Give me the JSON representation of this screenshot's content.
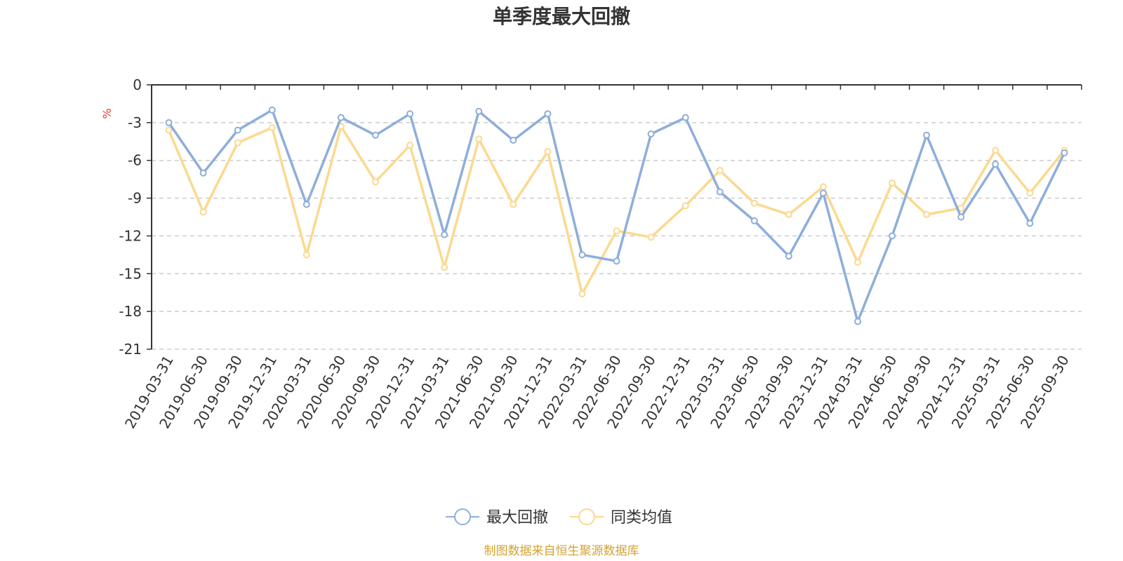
{
  "chart_data": {
    "type": "line",
    "title": "单季度最大回撤",
    "ylabel": "%",
    "ylim": [
      -21,
      0
    ],
    "yticks": [
      0,
      -3,
      -6,
      -9,
      -12,
      -15,
      -18,
      -21
    ],
    "grid": true,
    "legend_position": "bottom-center",
    "categories": [
      "2019-03-31",
      "2019-06-30",
      "2019-09-30",
      "2019-12-31",
      "2020-03-31",
      "2020-06-30",
      "2020-09-30",
      "2020-12-31",
      "2021-03-31",
      "2021-06-30",
      "2021-09-30",
      "2021-12-31",
      "2022-03-31",
      "2022-06-30",
      "2022-09-30",
      "2022-12-31",
      "2023-03-31",
      "2023-06-30",
      "2023-09-30",
      "2023-12-31",
      "2024-03-31",
      "2024-06-30",
      "2024-09-30",
      "2024-12-31",
      "2025-03-31",
      "2025-06-30",
      "2025-09-30"
    ],
    "series": [
      {
        "name": "最大回撤",
        "color": "#8eaedb",
        "values": [
          -3.0,
          -7.0,
          -3.6,
          -2.0,
          -9.5,
          -2.6,
          -4.0,
          -2.3,
          -11.9,
          -2.1,
          -4.4,
          -2.3,
          -13.5,
          -14.0,
          -3.9,
          -2.6,
          -8.5,
          -10.8,
          -13.6,
          -8.6,
          -18.8,
          -12.0,
          -4.0,
          -10.5,
          -6.3,
          -11.0,
          -5.4
        ]
      },
      {
        "name": "同类均值",
        "color": "#fbd98f",
        "values": [
          -3.6,
          -10.1,
          -4.6,
          -3.4,
          -13.5,
          -3.3,
          -7.7,
          -4.8,
          -14.5,
          -4.3,
          -9.5,
          -5.3,
          -16.6,
          -11.6,
          -12.1,
          -9.6,
          -6.8,
          -9.4,
          -10.3,
          -8.1,
          -14.1,
          -7.8,
          -10.3,
          -9.8,
          -5.2,
          -8.6,
          -5.2
        ]
      }
    ]
  },
  "unit_color": "#e23b3b",
  "axis_color": "#333333",
  "grid_color": "#cccccc",
  "source": {
    "text": "制图数据来自恒生聚源数据库",
    "color": "#d4a332"
  }
}
